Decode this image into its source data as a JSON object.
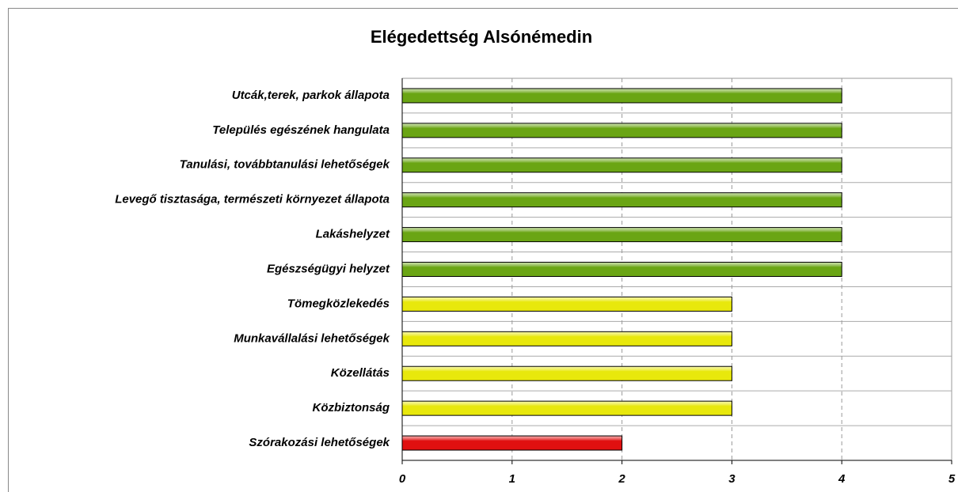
{
  "chart_data": {
    "type": "bar",
    "orientation": "horizontal",
    "title": "Elégedettség Alsónémedin",
    "categories": [
      "Utcák,terek, parkok állapota",
      "Település egészének hangulata",
      "Tanulási, továbbtanulási lehetőségek",
      "Levegő tisztasága, természeti környezet állapota",
      "Lakáshelyzet",
      "Egészségügyi helyzet",
      "Tömegközlekedés",
      "Munkavállalási lehetőségek",
      "Közellátás",
      "Közbiztonság",
      "Szórakozási lehetőségek"
    ],
    "values": [
      4,
      4,
      4,
      4,
      4,
      4,
      3,
      3,
      3,
      3,
      2
    ],
    "colors": [
      "#6aa514",
      "#6aa514",
      "#6aa514",
      "#6aa514",
      "#6aa514",
      "#6aa514",
      "#e8e80c",
      "#e8e80c",
      "#e8e80c",
      "#e8e80c",
      "#e01010"
    ],
    "xlim": [
      0,
      5
    ],
    "xticks": [
      0,
      1,
      2,
      3,
      4,
      5
    ],
    "grid": true
  }
}
